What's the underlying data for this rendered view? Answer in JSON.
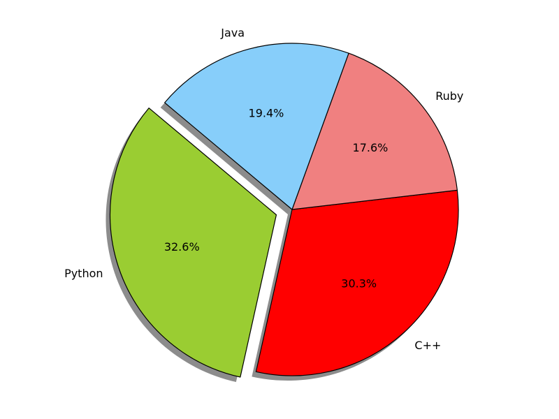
{
  "chart_data": {
    "type": "pie",
    "title": "",
    "categories": [
      "Python",
      "C++",
      "Ruby",
      "Java"
    ],
    "values": [
      32.6,
      30.3,
      17.6,
      19.4
    ],
    "percent_labels": [
      "32.6%",
      "30.3%",
      "17.6%",
      "19.4%"
    ],
    "colors": [
      "#9acd32",
      "#ff0000",
      "#f08080",
      "#87cefa"
    ],
    "explode": [
      true,
      false,
      false,
      false
    ],
    "shadow": true,
    "start_angle_deg": 140,
    "edge_color": "#000000",
    "legend": "none"
  }
}
